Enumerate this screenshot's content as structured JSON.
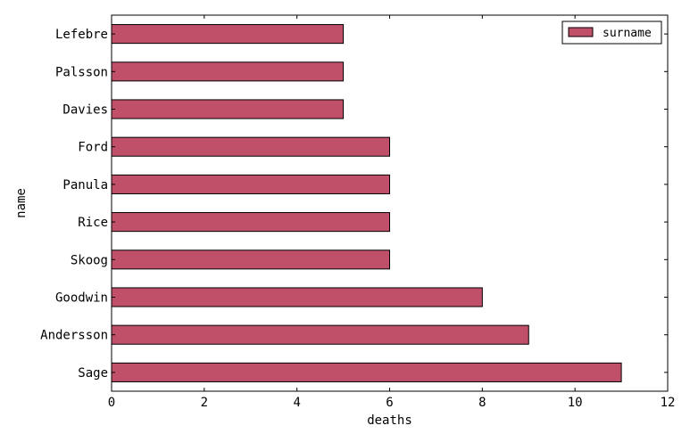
{
  "chart_data": {
    "type": "bar",
    "orientation": "horizontal",
    "categories": [
      "Sage",
      "Andersson",
      "Goodwin",
      "Skoog",
      "Rice",
      "Panula",
      "Ford",
      "Davies",
      "Palsson",
      "Lefebre"
    ],
    "series": [
      {
        "name": "surname",
        "values": [
          11,
          9,
          8,
          6,
          6,
          6,
          6,
          5,
          5,
          5
        ],
        "color": "#c0506a"
      }
    ],
    "xlabel": "deaths",
    "ylabel": "name",
    "xlim": [
      0,
      12
    ],
    "xticks": [
      "0",
      "2",
      "4",
      "6",
      "8",
      "10",
      "12"
    ],
    "grid": false,
    "legend": {
      "position": "top-right",
      "label": "surname"
    }
  }
}
